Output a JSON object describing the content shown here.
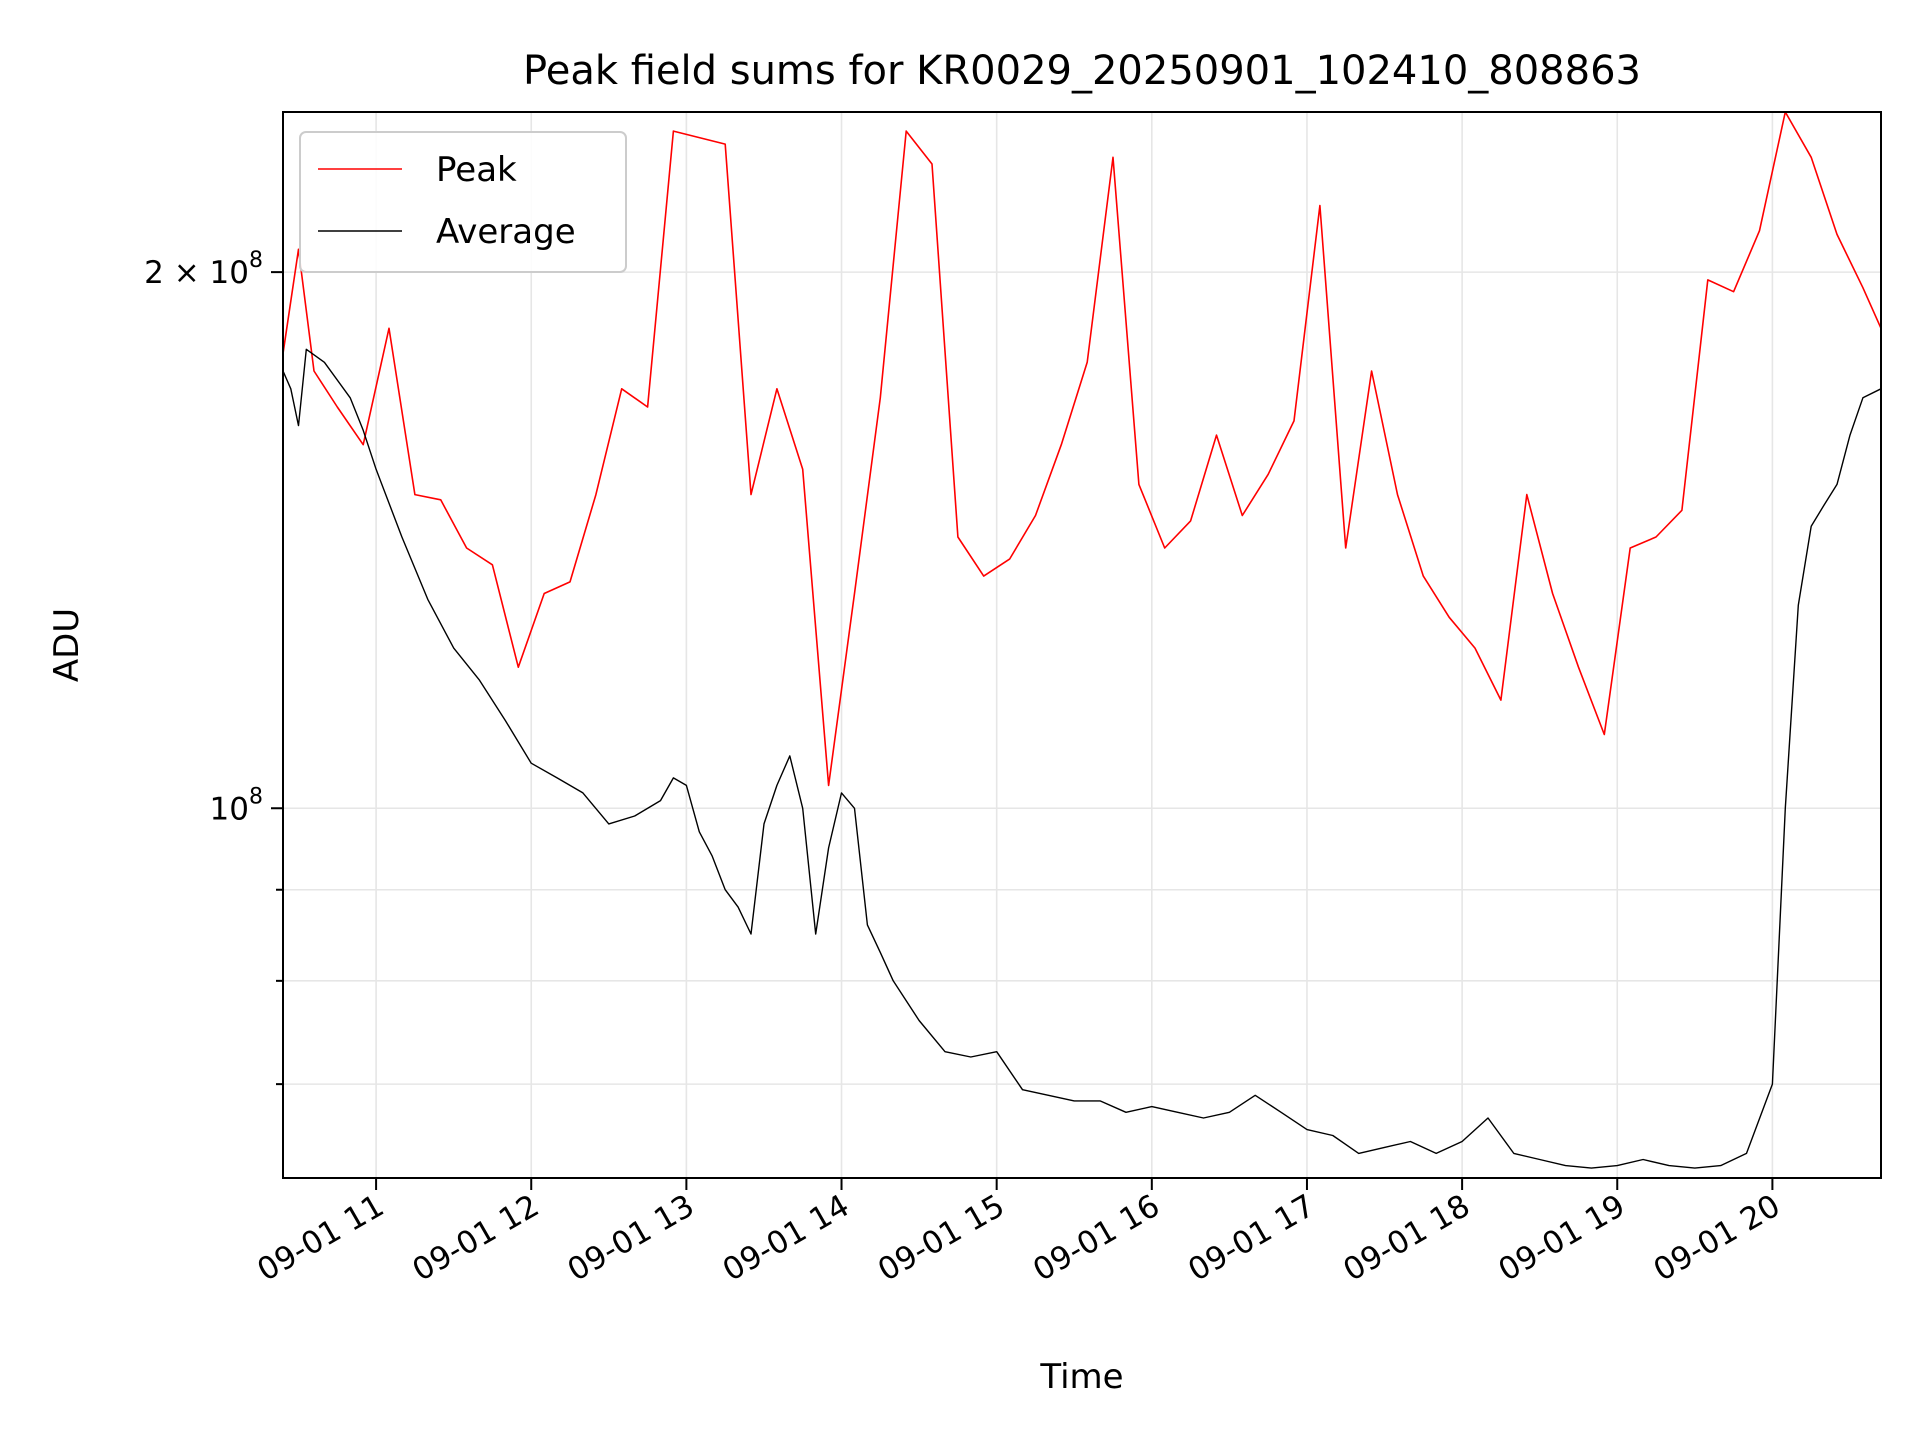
{
  "chart_data": {
    "type": "line",
    "title": "Peak field sums for KR0029_20250901_102410_808863",
    "xlabel": "Time",
    "ylabel": "ADU",
    "y_scale": "log",
    "grid": true,
    "legend_placement": "upper-left",
    "xlim": [
      "2025-09-01 10:24",
      "2025-09-01 20:42"
    ],
    "ylim": [
      62000000,
      246000000
    ],
    "x_ticks": [
      {
        "value": "2025-09-01 11:00",
        "label": "09-01 11"
      },
      {
        "value": "2025-09-01 12:00",
        "label": "09-01 12"
      },
      {
        "value": "2025-09-01 13:00",
        "label": "09-01 13"
      },
      {
        "value": "2025-09-01 14:00",
        "label": "09-01 14"
      },
      {
        "value": "2025-09-01 15:00",
        "label": "09-01 15"
      },
      {
        "value": "2025-09-01 16:00",
        "label": "09-01 16"
      },
      {
        "value": "2025-09-01 17:00",
        "label": "09-01 17"
      },
      {
        "value": "2025-09-01 18:00",
        "label": "09-01 18"
      },
      {
        "value": "2025-09-01 19:00",
        "label": "09-01 19"
      },
      {
        "value": "2025-09-01 20:00",
        "label": "09-01 20"
      }
    ],
    "y_major_ticks": [
      {
        "value": 100000000,
        "base": "10",
        "exp": "8"
      },
      {
        "value": 200000000,
        "prefix": "2 × ",
        "base": "10",
        "exp": "8"
      }
    ],
    "y_minor_ticks": [
      70000000,
      80000000,
      90000000
    ],
    "series": [
      {
        "name": "Peak",
        "color": "#ff0000",
        "x": [
          "2025-09-01 10:24",
          "2025-09-01 10:30",
          "2025-09-01 10:36",
          "2025-09-01 10:45",
          "2025-09-01 10:55",
          "2025-09-01 11:05",
          "2025-09-01 11:15",
          "2025-09-01 11:25",
          "2025-09-01 11:35",
          "2025-09-01 11:45",
          "2025-09-01 11:55",
          "2025-09-01 12:05",
          "2025-09-01 12:15",
          "2025-09-01 12:25",
          "2025-09-01 12:35",
          "2025-09-01 12:45",
          "2025-09-01 12:55",
          "2025-09-01 13:05",
          "2025-09-01 13:15",
          "2025-09-01 13:25",
          "2025-09-01 13:35",
          "2025-09-01 13:45",
          "2025-09-01 13:55",
          "2025-09-01 14:05",
          "2025-09-01 14:15",
          "2025-09-01 14:25",
          "2025-09-01 14:35",
          "2025-09-01 14:45",
          "2025-09-01 14:55",
          "2025-09-01 15:05",
          "2025-09-01 15:15",
          "2025-09-01 15:25",
          "2025-09-01 15:35",
          "2025-09-01 15:45",
          "2025-09-01 15:55",
          "2025-09-01 16:05",
          "2025-09-01 16:15",
          "2025-09-01 16:25",
          "2025-09-01 16:35",
          "2025-09-01 16:45",
          "2025-09-01 16:55",
          "2025-09-01 17:05",
          "2025-09-01 17:15",
          "2025-09-01 17:25",
          "2025-09-01 17:35",
          "2025-09-01 17:45",
          "2025-09-01 17:55",
          "2025-09-01 18:05",
          "2025-09-01 18:15",
          "2025-09-01 18:25",
          "2025-09-01 18:35",
          "2025-09-01 18:45",
          "2025-09-01 18:55",
          "2025-09-01 19:05",
          "2025-09-01 19:15",
          "2025-09-01 19:25",
          "2025-09-01 19:35",
          "2025-09-01 19:45",
          "2025-09-01 19:55",
          "2025-09-01 20:05",
          "2025-09-01 20:15",
          "2025-09-01 20:25",
          "2025-09-01 20:35",
          "2025-09-01 20:42"
        ],
        "values": [
          180000000,
          206000000,
          176000000,
          168000000,
          160000000,
          186000000,
          150000000,
          149000000,
          140000000,
          137000000,
          120000000,
          132000000,
          134000000,
          150000000,
          172000000,
          168000000,
          240000000,
          238000000,
          236000000,
          150000000,
          172000000,
          155000000,
          103000000,
          132000000,
          170000000,
          240000000,
          230000000,
          142000000,
          135000000,
          138000000,
          146000000,
          160000000,
          178000000,
          232000000,
          152000000,
          140000000,
          145000000,
          162000000,
          146000000,
          154000000,
          165000000,
          218000000,
          140000000,
          176000000,
          150000000,
          135000000,
          128000000,
          123000000,
          115000000,
          150000000,
          132000000,
          120000000,
          110000000,
          140000000,
          142000000,
          147000000,
          198000000,
          195000000,
          211000000,
          246000000,
          232000000,
          210000000,
          196000000,
          186000000
        ]
      },
      {
        "name": "Average",
        "color": "#000000",
        "x": [
          "2025-09-01 10:24",
          "2025-09-01 10:27",
          "2025-09-01 10:30",
          "2025-09-01 10:33",
          "2025-09-01 10:40",
          "2025-09-01 10:50",
          "2025-09-01 10:55",
          "2025-09-01 11:00",
          "2025-09-01 11:10",
          "2025-09-01 11:20",
          "2025-09-01 11:30",
          "2025-09-01 11:40",
          "2025-09-01 11:50",
          "2025-09-01 12:00",
          "2025-09-01 12:10",
          "2025-09-01 12:20",
          "2025-09-01 12:30",
          "2025-09-01 12:40",
          "2025-09-01 12:50",
          "2025-09-01 12:55",
          "2025-09-01 13:00",
          "2025-09-01 13:05",
          "2025-09-01 13:10",
          "2025-09-01 13:15",
          "2025-09-01 13:20",
          "2025-09-01 13:25",
          "2025-09-01 13:30",
          "2025-09-01 13:35",
          "2025-09-01 13:40",
          "2025-09-01 13:45",
          "2025-09-01 13:50",
          "2025-09-01 13:55",
          "2025-09-01 14:00",
          "2025-09-01 14:05",
          "2025-09-01 14:10",
          "2025-09-01 14:15",
          "2025-09-01 14:20",
          "2025-09-01 14:30",
          "2025-09-01 14:40",
          "2025-09-01 14:50",
          "2025-09-01 15:00",
          "2025-09-01 15:10",
          "2025-09-01 15:20",
          "2025-09-01 15:30",
          "2025-09-01 15:40",
          "2025-09-01 15:50",
          "2025-09-01 16:00",
          "2025-09-01 16:10",
          "2025-09-01 16:20",
          "2025-09-01 16:30",
          "2025-09-01 16:40",
          "2025-09-01 16:50",
          "2025-09-01 17:00",
          "2025-09-01 17:10",
          "2025-09-01 17:20",
          "2025-09-01 17:30",
          "2025-09-01 17:40",
          "2025-09-01 17:50",
          "2025-09-01 18:00",
          "2025-09-01 18:10",
          "2025-09-01 18:20",
          "2025-09-01 18:30",
          "2025-09-01 18:40",
          "2025-09-01 18:50",
          "2025-09-01 19:00",
          "2025-09-01 19:10",
          "2025-09-01 19:20",
          "2025-09-01 19:30",
          "2025-09-01 19:40",
          "2025-09-01 19:50",
          "2025-09-01 20:00",
          "2025-09-01 20:05",
          "2025-09-01 20:10",
          "2025-09-01 20:15",
          "2025-09-01 20:20",
          "2025-09-01 20:25",
          "2025-09-01 20:30",
          "2025-09-01 20:35",
          "2025-09-01 20:42"
        ],
        "values": [
          176000000,
          172000000,
          164000000,
          181000000,
          178000000,
          170000000,
          163000000,
          155000000,
          142000000,
          131000000,
          123000000,
          118000000,
          112000000,
          106000000,
          104000000,
          102000000,
          98000000,
          99000000,
          101000000,
          104000000,
          103000000,
          97000000,
          94000000,
          90000000,
          88000000,
          85000000,
          98000000,
          103000000,
          107000000,
          100000000,
          85000000,
          95000000,
          102000000,
          100000000,
          86000000,
          83000000,
          80000000,
          76000000,
          73000000,
          72500000,
          73000000,
          69500000,
          69000000,
          68500000,
          68500000,
          67500000,
          68000000,
          67500000,
          67000000,
          67500000,
          69000000,
          67500000,
          66000000,
          65500000,
          64000000,
          64500000,
          65000000,
          64000000,
          65000000,
          67000000,
          64000000,
          63500000,
          63000000,
          62800000,
          63000000,
          63500000,
          63000000,
          62800000,
          63000000,
          64000000,
          70000000,
          100000000,
          130000000,
          144000000,
          148000000,
          152000000,
          162000000,
          170000000,
          172000000
        ]
      }
    ]
  }
}
